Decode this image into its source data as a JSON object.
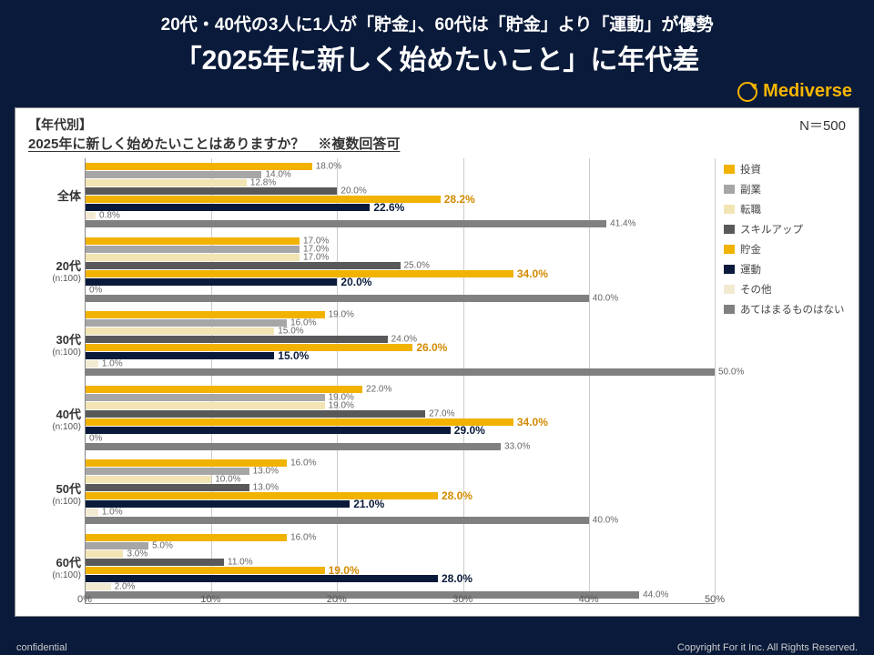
{
  "header": {
    "supertitle": "20代・40代の3人に1人が「貯金」、60代は「貯金」より「運動」が優勢",
    "title": "「2025年に新しく始めたいこと」に年代差",
    "brand": "Mediverse"
  },
  "chart": {
    "type": "grouped-horizontal-bar",
    "section_label": "【年代別】",
    "question": "2025年に新しく始めたいことはありますか？　※複数回答可",
    "n_label": "N＝500",
    "xmax": 50,
    "xticks": [
      0,
      10,
      20,
      30,
      40,
      50
    ],
    "xtick_labels": [
      "0%",
      "10%",
      "20%",
      "30%",
      "40%",
      "50%"
    ],
    "grid_color": "#cccccc",
    "plot_area_ratio": 0.72,
    "series": [
      {
        "key": "invest",
        "label": "投資",
        "color": "#f2b200"
      },
      {
        "key": "side",
        "label": "副業",
        "color": "#a6a6a6"
      },
      {
        "key": "job",
        "label": "転職",
        "color": "#f2e4b3"
      },
      {
        "key": "skill",
        "label": "スキルアップ",
        "color": "#595959"
      },
      {
        "key": "savings",
        "label": "貯金",
        "color": "#f2b200"
      },
      {
        "key": "exercise",
        "label": "運動",
        "color": "#0a1a3a"
      },
      {
        "key": "other",
        "label": "その他",
        "color": "#f2ead1"
      },
      {
        "key": "none",
        "label": "あてはまるものはない",
        "color": "#808080"
      }
    ],
    "highlight": {
      "savings": {
        "bold": true,
        "color": "#d28a00"
      },
      "exercise": {
        "bold": true,
        "color": "#0a1a3a"
      }
    },
    "groups": [
      {
        "label": "全体",
        "sub": "",
        "values": {
          "invest": 18.0,
          "side": 14.0,
          "job": 12.8,
          "skill": 20.0,
          "savings": 28.2,
          "exercise": 22.6,
          "other": 0.8,
          "none": 41.4
        }
      },
      {
        "label": "20代",
        "sub": "(n:100)",
        "values": {
          "invest": 17.0,
          "side": 17.0,
          "job": 17.0,
          "skill": 25.0,
          "savings": 34.0,
          "exercise": 20.0,
          "other": 0,
          "none": 40.0
        }
      },
      {
        "label": "30代",
        "sub": "(n:100)",
        "values": {
          "invest": 19.0,
          "side": 16.0,
          "job": 15.0,
          "skill": 24.0,
          "savings": 26.0,
          "exercise": 15.0,
          "other": 1.0,
          "none": 50.0
        }
      },
      {
        "label": "40代",
        "sub": "(n:100)",
        "values": {
          "invest": 22.0,
          "side": 19.0,
          "job": 19.0,
          "skill": 27.0,
          "savings": 34.0,
          "exercise": 29.0,
          "other": 0,
          "none": 33.0
        }
      },
      {
        "label": "50代",
        "sub": "(n:100)",
        "values": {
          "invest": 16.0,
          "side": 13.0,
          "job": 10.0,
          "skill": 13.0,
          "savings": 28.0,
          "exercise": 21.0,
          "other": 1.0,
          "none": 40.0
        }
      },
      {
        "label": "60代",
        "sub": "(n:100)",
        "values": {
          "invest": 16.0,
          "side": 5.0,
          "job": 3.0,
          "skill": 11.0,
          "savings": 19.0,
          "exercise": 28.0,
          "other": 2.0,
          "none": 44.0
        }
      }
    ]
  },
  "footer": {
    "left": "confidential",
    "right": "Copyright For it Inc. All Rights Reserved."
  }
}
